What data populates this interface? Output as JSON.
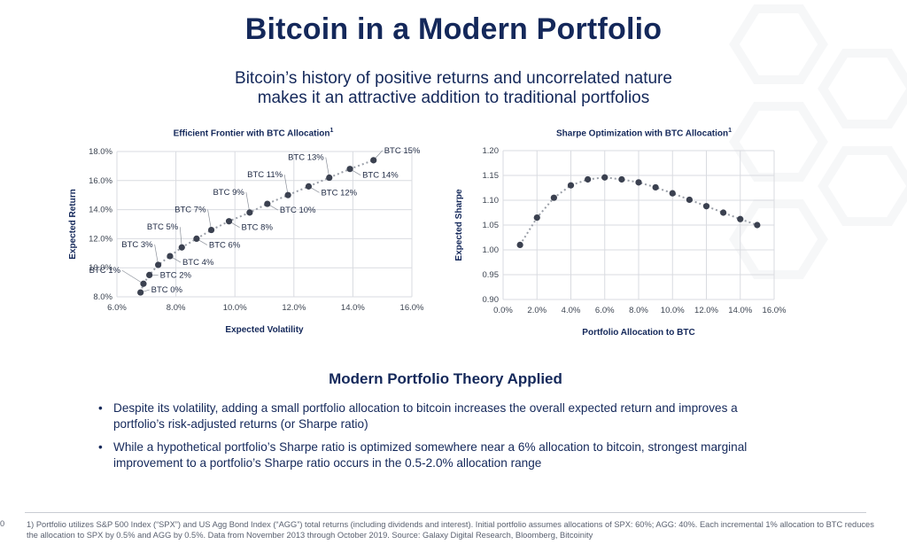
{
  "page": {
    "title": "Bitcoin in a Modern Portfolio",
    "subtitle_lines": [
      "Bitcoin’s history of positive returns and uncorrelated nature",
      "makes it an attractive addition to traditional portfolios"
    ],
    "page_number": "0"
  },
  "chart_data": [
    {
      "type": "scatter",
      "title": "Efficient Frontier with BTC Allocation",
      "title_sup": "1",
      "xlabel": "Expected Volatility",
      "ylabel": "Expected Return",
      "xlim": [
        6.0,
        16.0
      ],
      "ylim": [
        8.0,
        18.0
      ],
      "xticks": [
        "6.0%",
        "8.0%",
        "10.0%",
        "12.0%",
        "14.0%",
        "16.0%"
      ],
      "yticks": [
        "8.0%",
        "10.0%",
        "12.0%",
        "14.0%",
        "16.0%",
        "18.0%"
      ],
      "grid": true,
      "points": [
        {
          "label": "BTC 0%",
          "x": 6.8,
          "y": 8.3
        },
        {
          "label": "BTC 1%",
          "x": 6.9,
          "y": 8.9
        },
        {
          "label": "BTC 2%",
          "x": 7.1,
          "y": 9.5
        },
        {
          "label": "BTC 3%",
          "x": 7.4,
          "y": 10.2
        },
        {
          "label": "BTC 4%",
          "x": 7.8,
          "y": 10.8
        },
        {
          "label": "BTC 5%",
          "x": 8.2,
          "y": 11.4
        },
        {
          "label": "BTC 6%",
          "x": 8.7,
          "y": 12.0
        },
        {
          "label": "BTC 7%",
          "x": 9.2,
          "y": 12.6
        },
        {
          "label": "BTC 8%",
          "x": 9.8,
          "y": 13.2
        },
        {
          "label": "BTC 9%",
          "x": 10.5,
          "y": 13.8
        },
        {
          "label": "BTC 10%",
          "x": 11.1,
          "y": 14.4
        },
        {
          "label": "BTC 11%",
          "x": 11.8,
          "y": 15.0
        },
        {
          "label": "BTC 12%",
          "x": 12.5,
          "y": 15.6
        },
        {
          "label": "BTC 13%",
          "x": 13.2,
          "y": 16.2
        },
        {
          "label": "BTC 14%",
          "x": 13.9,
          "y": 16.8
        },
        {
          "label": "BTC 15%",
          "x": 14.7,
          "y": 17.4
        }
      ]
    },
    {
      "type": "line",
      "title": "Sharpe Optimization with BTC Allocation",
      "title_sup": "1",
      "xlabel": "Portfolio Allocation to BTC",
      "ylabel": "Expected Sharpe",
      "xlim": [
        0.0,
        16.0
      ],
      "ylim": [
        0.9,
        1.2
      ],
      "xticks": [
        "0.0%",
        "2.0%",
        "4.0%",
        "6.0%",
        "8.0%",
        "10.0%",
        "12.0%",
        "14.0%",
        "16.0%"
      ],
      "yticks": [
        "0.90",
        "0.95",
        "1.00",
        "1.05",
        "1.10",
        "1.15",
        "1.20"
      ],
      "grid": true,
      "x": [
        1,
        2,
        3,
        4,
        5,
        6,
        7,
        8,
        9,
        10,
        11,
        12,
        13,
        14,
        15
      ],
      "y": [
        1.01,
        1.065,
        1.105,
        1.13,
        1.142,
        1.146,
        1.142,
        1.136,
        1.126,
        1.114,
        1.101,
        1.088,
        1.075,
        1.062,
        1.05
      ]
    }
  ],
  "section": {
    "heading": "Modern Portfolio Theory Applied",
    "bullets": [
      "Despite its volatility, adding a small portfolio allocation to bitcoin increases the overall expected return and improves a portfolio’s risk-adjusted returns (or Sharpe ratio)",
      "While a hypothetical portfolio’s Sharpe ratio is optimized somewhere near a 6% allocation to bitcoin, strongest marginal improvement to a portfolio’s Sharpe ratio occurs in the 0.5-2.0% allocation range"
    ],
    "bullet_glyph": "•"
  },
  "footnote": "1) Portfolio utilizes S&P 500 Index (“SPX”) and US Agg Bond Index (“AGG”) total returns (including dividends and interest). Initial portfolio assumes allocations of SPX: 60%; AGG: 40%. Each incremental 1% allocation to BTC reduces the allocation to SPX by 0.5% and AGG by 0.5%. Data from November 2013 through October 2019. Source: Galaxy Digital Research, Bloomberg, Bitcoinity",
  "colors": {
    "navy": "#14285a",
    "marker": "#3b4150",
    "dotted_line": "#9a9fa8",
    "grid": "#d9dbe0"
  }
}
